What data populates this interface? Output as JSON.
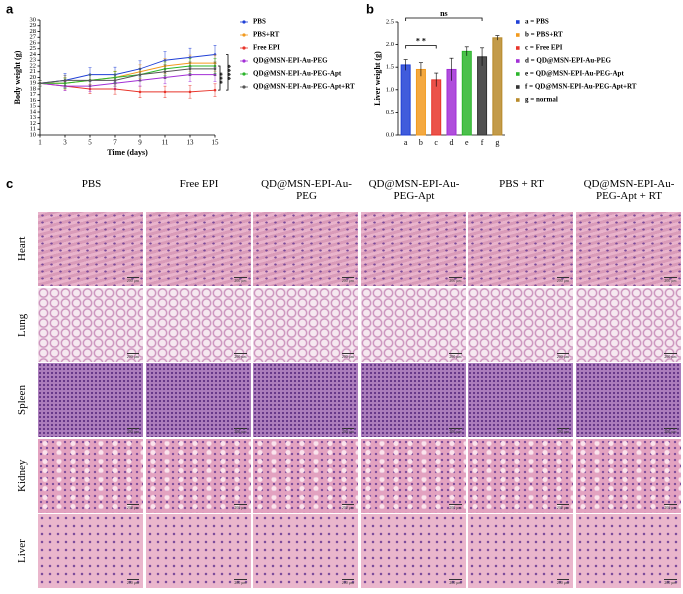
{
  "chart_data": [
    {
      "panel": "a",
      "type": "line",
      "xlabel": "Time (days)",
      "ylabel": "Body weight (g)",
      "x": [
        1,
        3,
        5,
        7,
        9,
        11,
        13,
        15
      ],
      "xlim": [
        1,
        15
      ],
      "xticks": [
        1,
        3,
        5,
        7,
        9,
        11,
        13,
        15
      ],
      "ylim": [
        10,
        30
      ],
      "yticks": [
        10,
        11,
        12,
        13,
        14,
        15,
        16,
        17,
        18,
        19,
        20,
        21,
        22,
        23,
        24,
        25,
        26,
        27,
        28,
        29,
        30
      ],
      "series": [
        {
          "name": "PBS",
          "color": "#1f3fd6",
          "values": [
            19,
            19.5,
            20.5,
            20.5,
            21.5,
            23,
            23.5,
            24
          ],
          "errors": [
            0.5,
            1.2,
            1.2,
            1.3,
            1.4,
            1.5,
            1.6,
            1.6
          ]
        },
        {
          "name": "PBS+RT",
          "color": "#f29a1e",
          "values": [
            19,
            19,
            19.5,
            20,
            21,
            22,
            22.5,
            22.5
          ],
          "errors": [
            0.5,
            1,
            1,
            1.1,
            1.2,
            1.3,
            1.4,
            1.4
          ]
        },
        {
          "name": "Free EPI",
          "color": "#e8342a",
          "values": [
            19,
            18.5,
            18,
            18,
            17.5,
            17.5,
            17.5,
            17.8
          ],
          "errors": [
            0.5,
            0.8,
            0.8,
            0.9,
            1,
            1,
            1.1,
            1.1
          ]
        },
        {
          "name": "QD@MSN-EPI-Au-PEG",
          "color": "#a22fd6",
          "values": [
            19,
            18.5,
            18.5,
            19,
            19.5,
            20,
            20.5,
            20.5
          ],
          "errors": [
            0.5,
            0.8,
            0.9,
            1,
            1,
            1.1,
            1.2,
            1.2
          ]
        },
        {
          "name": "QD@MSN-EPI-Au-PEG-Apt",
          "color": "#2bb52b",
          "values": [
            19,
            19,
            19.5,
            20,
            20.5,
            21.5,
            22,
            22
          ],
          "errors": [
            0.5,
            0.9,
            1,
            1,
            1.1,
            1.2,
            1.3,
            1.3
          ]
        },
        {
          "name": "QD@MSN-EPI-Au-PEG-Apt+RT",
          "color": "#555555",
          "values": [
            19,
            19.5,
            19.5,
            19.5,
            20.5,
            21,
            21.5,
            21.5
          ],
          "errors": [
            0.5,
            0.9,
            1,
            1,
            1.1,
            1.2,
            1.2,
            1.2
          ]
        }
      ],
      "annotations": [
        "***",
        "****"
      ]
    },
    {
      "panel": "b",
      "type": "bar",
      "ylabel": "Liver weight (g)",
      "categories": [
        "a",
        "b",
        "c",
        "d",
        "e",
        "f",
        "g"
      ],
      "values": [
        1.55,
        1.45,
        1.22,
        1.45,
        1.85,
        1.73,
        2.15
      ],
      "errors": [
        0.12,
        0.15,
        0.15,
        0.25,
        0.1,
        0.2,
        0.05
      ],
      "colors": [
        "#1f3fd6",
        "#f29a1e",
        "#e8342a",
        "#a22fd6",
        "#2bb52b",
        "#333333",
        "#b88a2a"
      ],
      "ylim": [
        0,
        2.5
      ],
      "yticks": [
        {
          "value": 0,
          "label": "0.0"
        },
        0.5,
        {
          "value": 1,
          "label": "1.0"
        },
        1.5,
        {
          "value": 2,
          "label": "2.0"
        },
        2.5
      ],
      "legend": [
        "a = PBS",
        "b = PBS+RT",
        "c = Free EPI",
        "d = QD@MSN-EPI-Au-PEG",
        "e = QD@MSN-EPI-Au-PEG-Apt",
        "f = QD@MSN-EPI-Au-PEG-Apt+RT",
        "g = normal"
      ],
      "annotations": [
        "* *",
        "ns"
      ]
    }
  ],
  "panel_c": {
    "label": "c",
    "columns": [
      "PBS",
      "Free EPI",
      "QD@MSN-EPI-Au-PEG",
      "QD@MSN-EPI-Au-PEG-Apt",
      "PBS + RT",
      "QD@MSN-EPI-Au-PEG-Apt + RT"
    ],
    "rows": [
      "Heart",
      "Lung",
      "Spleen",
      "Kidney",
      "Liver"
    ],
    "scale_bar": "200 μm"
  }
}
